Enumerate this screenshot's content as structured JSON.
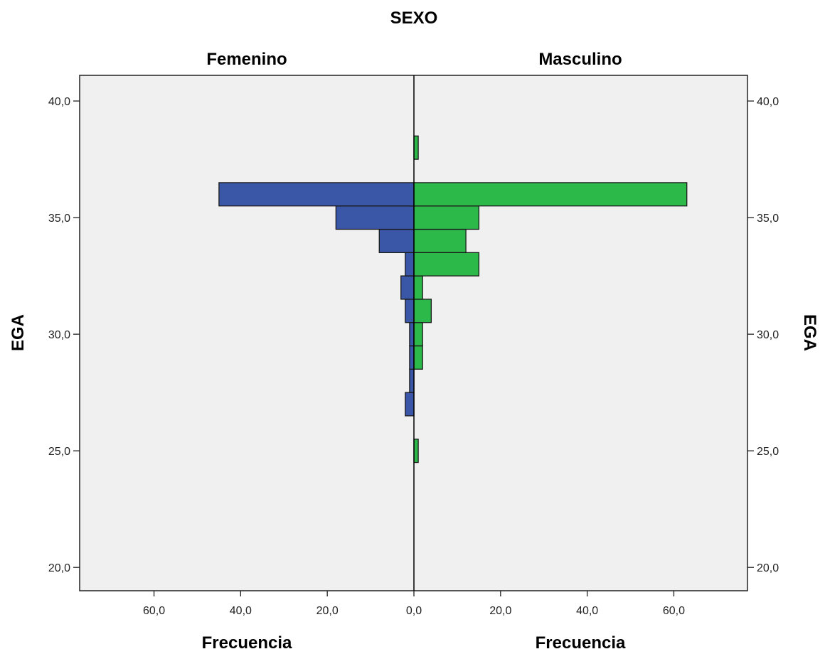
{
  "chart_data": {
    "type": "bar",
    "orientation": "horizontal-pyramid",
    "title": "SEXO",
    "ylabel": "EGA",
    "xlabel": "Frecuencia",
    "ylim": [
      19,
      41.1
    ],
    "xlim": [
      -77,
      77
    ],
    "yticks": [
      "40,0",
      "35,0",
      "30,0",
      "25,0",
      "20,0"
    ],
    "ytick_values": [
      40,
      35,
      30,
      25,
      20
    ],
    "xticks": [
      "60,0",
      "40,0",
      "20,0",
      "0,0",
      "20,0",
      "40,0",
      "60,0"
    ],
    "xtick_values": [
      -60,
      -40,
      -20,
      0,
      20,
      40,
      60
    ],
    "bin_width": 1,
    "grid": false,
    "background_color": "#f0f0f0",
    "series": [
      {
        "name": "Femenino",
        "side": "left",
        "color": "#3a56a6",
        "bins": [
          27,
          28,
          29,
          30,
          31,
          32,
          33,
          34,
          35,
          36
        ],
        "values": [
          2,
          1,
          1,
          1,
          2,
          3,
          2,
          8,
          18,
          45
        ]
      },
      {
        "name": "Masculino",
        "side": "right",
        "color": "#2db84a",
        "bins": [
          25,
          29,
          30,
          31,
          32,
          33,
          34,
          35,
          36,
          38
        ],
        "values": [
          1,
          2,
          2,
          4,
          2,
          15,
          12,
          15,
          63,
          1
        ]
      }
    ]
  }
}
